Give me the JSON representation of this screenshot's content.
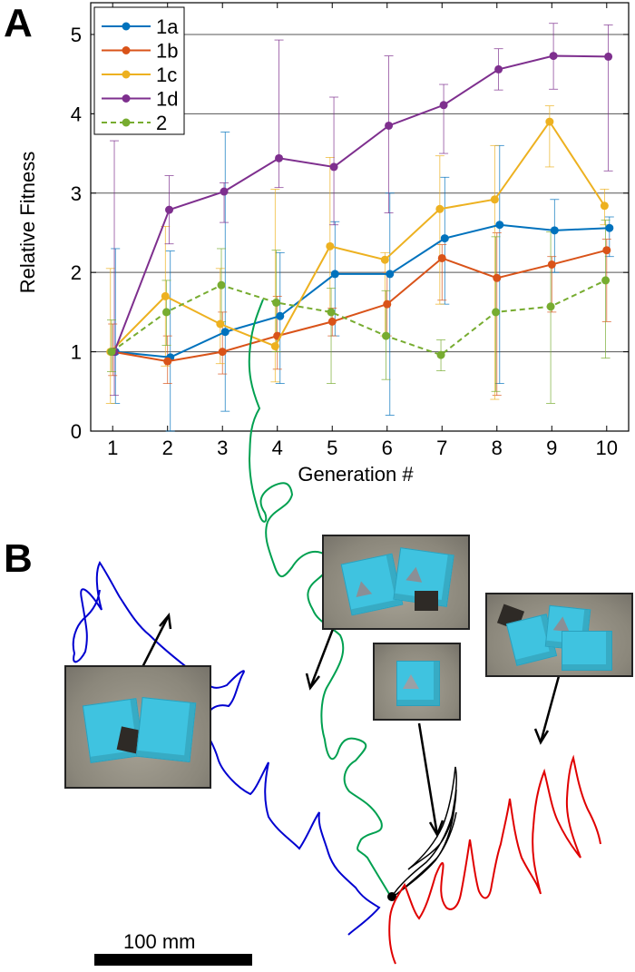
{
  "panel_a": {
    "label": "A"
  },
  "panel_b": {
    "label": "B",
    "scale_bar_label": "100 mm"
  },
  "chart_data": {
    "type": "line",
    "title": "",
    "xlabel": "Generation #",
    "ylabel": "Relative Fitness",
    "x": [
      1,
      2,
      3,
      4,
      5,
      6,
      7,
      8,
      9,
      10
    ],
    "xlim": [
      0.6,
      10.4
    ],
    "ylim": [
      0,
      5.4
    ],
    "yticks": [
      0,
      1,
      2,
      3,
      4,
      5
    ],
    "grid": "horizontal",
    "legend_position": "top-left",
    "series": [
      {
        "name": "1a",
        "color": "#0072bd",
        "dashed": false,
        "values": [
          1.0,
          0.93,
          1.25,
          1.45,
          1.98,
          1.98,
          2.43,
          2.6,
          2.53,
          2.56
        ],
        "err_low": [
          0.35,
          0.0,
          0.25,
          0.6,
          1.2,
          0.2,
          1.6,
          0.6,
          2.0,
          2.2
        ],
        "err_high": [
          2.3,
          2.27,
          3.77,
          2.25,
          2.64,
          3.0,
          3.2,
          3.6,
          2.92,
          2.7
        ]
      },
      {
        "name": "1b",
        "color": "#d95319",
        "dashed": false,
        "values": [
          1.0,
          0.88,
          1.0,
          1.2,
          1.38,
          1.6,
          2.18,
          1.93,
          2.1,
          2.28
        ],
        "err_low": [
          0.7,
          0.6,
          0.72,
          0.78,
          1.2,
          1.2,
          1.65,
          0.45,
          1.5,
          1.38
        ],
        "err_high": [
          1.35,
          1.2,
          1.5,
          1.7,
          1.55,
          2.0,
          2.35,
          2.5,
          2.2,
          2.42
        ]
      },
      {
        "name": "1c",
        "color": "#edb120",
        "dashed": false,
        "values": [
          1.0,
          1.7,
          1.35,
          1.07,
          2.33,
          2.16,
          2.8,
          2.92,
          3.9,
          2.84
        ],
        "err_low": [
          0.35,
          0.82,
          0.85,
          0.62,
          1.5,
          1.2,
          1.6,
          0.4,
          3.33,
          2.6
        ],
        "err_high": [
          2.05,
          2.58,
          2.05,
          3.05,
          3.45,
          2.25,
          3.47,
          3.6,
          4.1,
          3.05
        ]
      },
      {
        "name": "1d",
        "color": "#7e2f8e",
        "dashed": false,
        "values": [
          1.0,
          2.79,
          3.02,
          3.44,
          3.33,
          3.85,
          4.11,
          4.56,
          4.73,
          4.72
        ],
        "err_low": [
          0.45,
          2.36,
          2.63,
          3.07,
          2.6,
          2.75,
          3.5,
          4.3,
          4.31,
          3.28
        ],
        "err_high": [
          3.66,
          3.22,
          3.13,
          4.93,
          4.21,
          4.73,
          4.37,
          4.82,
          5.14,
          5.12
        ]
      },
      {
        "name": "2",
        "color": "#77ac30",
        "dashed": true,
        "values": [
          1.0,
          1.5,
          1.84,
          1.62,
          1.5,
          1.2,
          0.96,
          1.5,
          1.57,
          1.9
        ],
        "err_low": [
          0.75,
          1.08,
          1.38,
          1.0,
          0.6,
          0.65,
          0.76,
          0.5,
          0.35,
          0.92
        ],
        "err_high": [
          1.4,
          1.9,
          2.3,
          2.28,
          1.8,
          1.77,
          1.15,
          2.45,
          2.51,
          2.66
        ]
      }
    ]
  }
}
